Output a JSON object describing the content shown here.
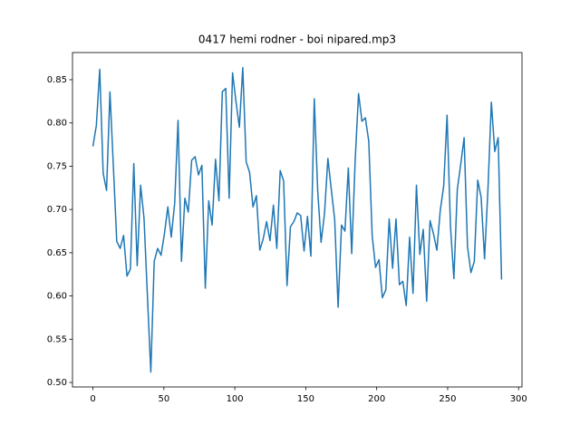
{
  "chart_data": {
    "type": "line",
    "title": "0417 hemi rodner - boi nipared.mp3",
    "x": [
      0,
      2.4,
      4.8,
      7.2,
      9.6,
      12,
      14.4,
      16.8,
      19.2,
      21.6,
      24,
      26.4,
      28.8,
      31.2,
      33.6,
      36,
      38.4,
      40.8,
      43.2,
      45.6,
      48,
      50.4,
      52.8,
      55.2,
      57.6,
      60,
      62.4,
      64.8,
      67.2,
      69.6,
      72,
      74.4,
      76.8,
      79.2,
      81.6,
      84,
      86.4,
      88.8,
      91.2,
      93.6,
      96,
      98.4,
      100.8,
      103.2,
      105.6,
      108,
      110.4,
      112.8,
      115.2,
      117.6,
      120,
      122.4,
      124.8,
      127.2,
      129.6,
      132,
      134.4,
      136.8,
      139.2,
      141.6,
      144,
      146.4,
      148.8,
      151.2,
      153.6,
      156,
      158.4,
      160.8,
      163.2,
      165.6,
      168,
      170.4,
      172.8,
      175.2,
      177.6,
      180,
      182.4,
      184.8,
      187.2,
      189.6,
      192,
      194.4,
      196.8,
      199.2,
      201.6,
      204,
      206.4,
      208.8,
      211.2,
      213.6,
      216,
      218.4,
      220.8,
      223.2,
      225.6,
      228,
      230.4,
      232.8,
      235.2,
      237.6,
      240,
      242.4,
      244.8,
      247.2,
      249.6,
      252,
      254.4,
      256.8,
      259.2,
      261.6,
      264,
      266.4,
      268.8,
      271.2,
      273.6,
      276,
      278.4,
      280.8,
      283.2,
      285.6,
      288
    ],
    "series": [
      {
        "color": "#1f77b4",
        "values": [
          0.773,
          0.797,
          0.862,
          0.742,
          0.722,
          0.836,
          0.75,
          0.663,
          0.655,
          0.67,
          0.623,
          0.631,
          0.753,
          0.635,
          0.728,
          0.69,
          0.6,
          0.512,
          0.64,
          0.655,
          0.647,
          0.672,
          0.703,
          0.668,
          0.707,
          0.803,
          0.64,
          0.713,
          0.697,
          0.757,
          0.761,
          0.74,
          0.751,
          0.609,
          0.71,
          0.682,
          0.758,
          0.71,
          0.836,
          0.84,
          0.713,
          0.858,
          0.825,
          0.795,
          0.864,
          0.755,
          0.743,
          0.703,
          0.716,
          0.653,
          0.666,
          0.686,
          0.664,
          0.705,
          0.655,
          0.745,
          0.733,
          0.612,
          0.68,
          0.686,
          0.696,
          0.693,
          0.652,
          0.692,
          0.646,
          0.828,
          0.722,
          0.662,
          0.695,
          0.759,
          0.723,
          0.688,
          0.587,
          0.682,
          0.675,
          0.748,
          0.649,
          0.756,
          0.834,
          0.802,
          0.806,
          0.779,
          0.67,
          0.633,
          0.642,
          0.598,
          0.607,
          0.689,
          0.632,
          0.689,
          0.613,
          0.617,
          0.589,
          0.668,
          0.603,
          0.728,
          0.648,
          0.677,
          0.594,
          0.687,
          0.672,
          0.653,
          0.699,
          0.727,
          0.809,
          0.68,
          0.62,
          0.723,
          0.752,
          0.783,
          0.657,
          0.627,
          0.64,
          0.734,
          0.714,
          0.643,
          0.723,
          0.824,
          0.767,
          0.783,
          0.619
        ]
      }
    ],
    "xlim": [
      -14.4,
      302.4
    ],
    "xticks": [
      0,
      50,
      100,
      150,
      200,
      250,
      300
    ],
    "ylim": [
      0.4948,
      0.8814
    ],
    "yticks": [
      {
        "value": 0.5,
        "label": "0.50"
      },
      {
        "value": 0.55,
        "label": "0.55"
      },
      {
        "value": 0.6,
        "label": "0.60"
      },
      {
        "value": 0.65,
        "label": "0.65"
      },
      {
        "value": 0.7,
        "label": "0.70"
      },
      {
        "value": 0.75,
        "label": "0.75"
      },
      {
        "value": 0.8,
        "label": "0.80"
      },
      {
        "value": 0.85,
        "label": "0.85"
      }
    ]
  }
}
